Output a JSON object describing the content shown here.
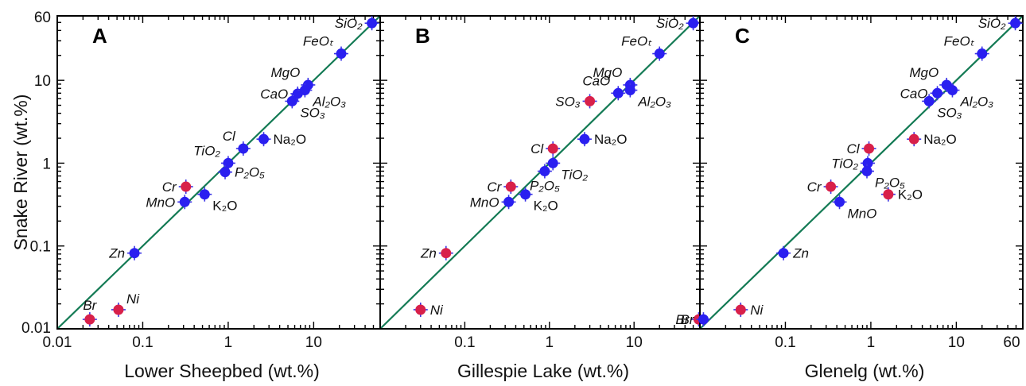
{
  "chart_data": [
    {
      "type": "scatter",
      "panel_label": "A",
      "ylabel": "Snake River (wt.%)",
      "xlabel": "Lower Sheepbed (wt.%)",
      "log_x": true,
      "log_y": true,
      "xlim": [
        0.01,
        60
      ],
      "ylim": [
        0.01,
        60
      ],
      "x_ticks": [
        "0.01",
        "0.1",
        "1",
        "10"
      ],
      "y_ticks": [
        "0.01",
        "0.1",
        "1",
        "10",
        "60"
      ],
      "one_to_one_line": true,
      "points": [
        {
          "label": "SiO₂",
          "x": 48,
          "y": 49,
          "color": "#2a1ff0",
          "label_style": "italic",
          "label_pos": "w"
        },
        {
          "label": "FeOₜ",
          "x": 21,
          "y": 21,
          "color": "#2a1ff0",
          "label_style": "italic",
          "label_pos": "nw"
        },
        {
          "label": "MgO",
          "x": 8.6,
          "y": 8.8,
          "color": "#2a1ff0",
          "label_style": "italic",
          "label_pos": "nw"
        },
        {
          "label": "CaO",
          "x": 6.5,
          "y": 6.9,
          "color": "#2a1ff0",
          "label_style": "italic",
          "label_pos": "w"
        },
        {
          "label": "Al₂O₃",
          "x": 7.9,
          "y": 7.6,
          "color": "#2a1ff0",
          "label_style": "italic",
          "label_pos": "se"
        },
        {
          "label": "SO₃",
          "x": 5.6,
          "y": 5.6,
          "color": "#2a1ff0",
          "label_style": "italic",
          "label_pos": "se"
        },
        {
          "label": "Na₂O",
          "x": 2.6,
          "y": 1.95,
          "color": "#2a1ff0",
          "label_style": "normal",
          "label_pos": "e"
        },
        {
          "label": "Cl",
          "x": 1.5,
          "y": 1.5,
          "color": "#2a1ff0",
          "label_style": "italic",
          "label_pos": "nw"
        },
        {
          "label": "TiO₂",
          "x": 1.0,
          "y": 1.0,
          "color": "#2a1ff0",
          "label_style": "italic",
          "label_pos": "nw"
        },
        {
          "label": "P₂O₅",
          "x": 0.92,
          "y": 0.78,
          "color": "#2a1ff0",
          "label_style": "italic",
          "label_pos": "e"
        },
        {
          "label": "Cr",
          "x": 0.32,
          "y": 0.52,
          "color": "#d8204a",
          "label_style": "italic",
          "label_pos": "w"
        },
        {
          "label": "K₂O",
          "x": 0.53,
          "y": 0.42,
          "color": "#2a1ff0",
          "label_style": "normal",
          "label_pos": "se"
        },
        {
          "label": "MnO",
          "x": 0.31,
          "y": 0.34,
          "color": "#2a1ff0",
          "label_style": "italic",
          "label_pos": "w"
        },
        {
          "label": "Zn",
          "x": 0.08,
          "y": 0.082,
          "color": "#2a1ff0",
          "label_style": "italic",
          "label_pos": "w"
        },
        {
          "label": "Br",
          "x": 0.024,
          "y": 0.013,
          "color": "#d8204a",
          "label_style": "italic",
          "label_pos": "n"
        },
        {
          "label": "Ni",
          "x": 0.052,
          "y": 0.017,
          "color": "#d8204a",
          "label_style": "italic",
          "label_pos": "ne"
        }
      ]
    },
    {
      "type": "scatter",
      "panel_label": "B",
      "xlabel": "Gillespie Lake (wt.%)",
      "log_x": true,
      "log_y": true,
      "xlim": [
        0.01,
        60
      ],
      "ylim": [
        0.01,
        60
      ],
      "x_ticks": [
        "0.1",
        "1",
        "10"
      ],
      "one_to_one_line": true,
      "points": [
        {
          "label": "SiO₂",
          "x": 50,
          "y": 49,
          "color": "#2a1ff0",
          "label_style": "italic",
          "label_pos": "w"
        },
        {
          "label": "FeOₜ",
          "x": 20,
          "y": 21,
          "color": "#2a1ff0",
          "label_style": "italic",
          "label_pos": "nw"
        },
        {
          "label": "MgO",
          "x": 9.0,
          "y": 8.8,
          "color": "#2a1ff0",
          "label_style": "italic",
          "label_pos": "nw"
        },
        {
          "label": "CaO",
          "x": 6.5,
          "y": 7.0,
          "color": "#2a1ff0",
          "label_style": "italic",
          "label_pos": "nw"
        },
        {
          "label": "Al₂O₃",
          "x": 9.0,
          "y": 7.6,
          "color": "#2a1ff0",
          "label_style": "italic",
          "label_pos": "se"
        },
        {
          "label": "SO₃",
          "x": 3.0,
          "y": 5.6,
          "color": "#d8204a",
          "label_style": "italic",
          "label_pos": "w"
        },
        {
          "label": "Na₂O",
          "x": 2.6,
          "y": 1.95,
          "color": "#2a1ff0",
          "label_style": "normal",
          "label_pos": "e"
        },
        {
          "label": "Cl",
          "x": 1.1,
          "y": 1.5,
          "color": "#d8204a",
          "label_style": "italic",
          "label_pos": "w"
        },
        {
          "label": "TiO₂",
          "x": 1.1,
          "y": 1.0,
          "color": "#2a1ff0",
          "label_style": "italic",
          "label_pos": "se"
        },
        {
          "label": "P₂O₅",
          "x": 0.88,
          "y": 0.8,
          "color": "#2a1ff0",
          "label_style": "italic",
          "label_pos": "s"
        },
        {
          "label": "Cr",
          "x": 0.35,
          "y": 0.52,
          "color": "#d8204a",
          "label_style": "italic",
          "label_pos": "w"
        },
        {
          "label": "K₂O",
          "x": 0.52,
          "y": 0.42,
          "color": "#2a1ff0",
          "label_style": "normal",
          "label_pos": "se"
        },
        {
          "label": "MnO",
          "x": 0.33,
          "y": 0.34,
          "color": "#2a1ff0",
          "label_style": "italic",
          "label_pos": "w"
        },
        {
          "label": "Zn",
          "x": 0.06,
          "y": 0.082,
          "color": "#d8204a",
          "label_style": "italic",
          "label_pos": "w"
        },
        {
          "label": "Ni",
          "x": 0.03,
          "y": 0.017,
          "color": "#d8204a",
          "label_style": "italic",
          "label_pos": "e"
        },
        {
          "label": "Br",
          "x": 58,
          "y": 0.013,
          "color": "#d8204a",
          "label_style": "italic",
          "label_pos": "w"
        }
      ]
    },
    {
      "type": "scatter",
      "panel_label": "C",
      "xlabel": "Glenelg (wt.%)",
      "log_x": true,
      "log_y": true,
      "xlim": [
        0.01,
        60
      ],
      "ylim": [
        0.01,
        60
      ],
      "x_ticks": [
        "0.1",
        "1",
        "10",
        "60"
      ],
      "one_to_one_line": true,
      "points": [
        {
          "label": "SiO₂",
          "x": 49,
          "y": 49,
          "color": "#2a1ff0",
          "label_style": "italic",
          "label_pos": "w"
        },
        {
          "label": "FeOₜ",
          "x": 20,
          "y": 21,
          "color": "#2a1ff0",
          "label_style": "italic",
          "label_pos": "nw"
        },
        {
          "label": "MgO",
          "x": 7.7,
          "y": 8.8,
          "color": "#2a1ff0",
          "label_style": "italic",
          "label_pos": "nw"
        },
        {
          "label": "CaO",
          "x": 6.0,
          "y": 7.0,
          "color": "#2a1ff0",
          "label_style": "italic",
          "label_pos": "w"
        },
        {
          "label": "Al₂O₃",
          "x": 9.0,
          "y": 7.6,
          "color": "#2a1ff0",
          "label_style": "italic",
          "label_pos": "se"
        },
        {
          "label": "SO₃",
          "x": 4.8,
          "y": 5.6,
          "color": "#2a1ff0",
          "label_style": "italic",
          "label_pos": "se"
        },
        {
          "label": "Na₂O",
          "x": 3.2,
          "y": 1.95,
          "color": "#d8204a",
          "label_style": "normal",
          "label_pos": "e"
        },
        {
          "label": "Cl",
          "x": 0.95,
          "y": 1.5,
          "color": "#d8204a",
          "label_style": "italic",
          "label_pos": "w"
        },
        {
          "label": "TiO₂",
          "x": 0.92,
          "y": 1.0,
          "color": "#2a1ff0",
          "label_style": "italic",
          "label_pos": "w"
        },
        {
          "label": "P₂O₅",
          "x": 0.9,
          "y": 0.8,
          "color": "#2a1ff0",
          "label_style": "italic",
          "label_pos": "se"
        },
        {
          "label": "Cr",
          "x": 0.34,
          "y": 0.52,
          "color": "#d8204a",
          "label_style": "italic",
          "label_pos": "w"
        },
        {
          "label": "K₂O",
          "x": 1.6,
          "y": 0.42,
          "color": "#d8204a",
          "label_style": "normal",
          "label_pos": "e"
        },
        {
          "label": "MnO",
          "x": 0.43,
          "y": 0.34,
          "color": "#2a1ff0",
          "label_style": "italic",
          "label_pos": "se"
        },
        {
          "label": "Zn",
          "x": 0.095,
          "y": 0.082,
          "color": "#2a1ff0",
          "label_style": "italic",
          "label_pos": "e"
        },
        {
          "label": "Ni",
          "x": 0.03,
          "y": 0.017,
          "color": "#d8204a",
          "label_style": "italic",
          "label_pos": "e"
        },
        {
          "label": "Br",
          "x": 0.011,
          "y": 0.013,
          "color": "#2a1ff0",
          "label_style": "italic",
          "label_pos": "w"
        }
      ]
    }
  ]
}
